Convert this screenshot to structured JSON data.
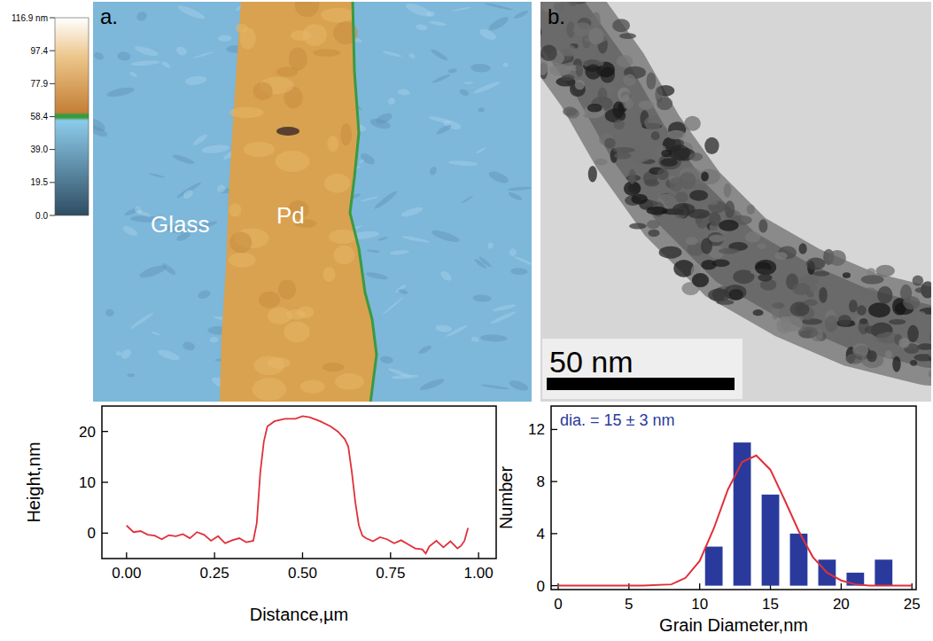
{
  "afm_image": {
    "letter": "a.",
    "labels": [
      "Glass",
      "Pd"
    ],
    "colorbar": {
      "range": [
        0,
        116.9
      ],
      "ticks": [
        {
          "value": 116.9,
          "label": "116.9 nm"
        },
        97.4,
        77.9,
        58.4,
        {
          "value": 39.0,
          "label": "39.0"
        },
        19.5,
        {
          "value": 0.0,
          "label": "0.0"
        }
      ]
    }
  },
  "tem_image": {
    "letter": "b.",
    "scale_bar": "50 nm"
  },
  "chart_data": [
    {
      "type": "line",
      "x_label": "Distance,µm",
      "y_label": "Height,nm",
      "color": "#e0303a",
      "x": [
        0,
        0.02,
        0.04,
        0.06,
        0.08,
        0.1,
        0.12,
        0.14,
        0.16,
        0.18,
        0.2,
        0.22,
        0.24,
        0.26,
        0.28,
        0.3,
        0.32,
        0.34,
        0.36,
        0.37,
        0.38,
        0.39,
        0.4,
        0.42,
        0.45,
        0.48,
        0.5,
        0.52,
        0.55,
        0.58,
        0.6,
        0.62,
        0.63,
        0.64,
        0.65,
        0.66,
        0.67,
        0.68,
        0.7,
        0.72,
        0.74,
        0.76,
        0.78,
        0.8,
        0.82,
        0.84,
        0.85,
        0.86,
        0.88,
        0.9,
        0.92,
        0.94,
        0.95,
        0.96,
        0.97
      ],
      "values": [
        1.5,
        0.2,
        0.4,
        -0.3,
        -0.5,
        -1.2,
        -0.4,
        -0.6,
        -0.2,
        -1.0,
        0.2,
        -0.3,
        -1.5,
        -0.6,
        -2.0,
        -1.4,
        -1.0,
        -1.8,
        -1.5,
        2,
        12,
        18,
        21,
        22,
        22.5,
        22.5,
        23,
        22.8,
        22,
        21,
        20,
        18.5,
        17,
        12,
        6,
        1.5,
        -0.5,
        -1.0,
        -1.6,
        -0.8,
        -1.2,
        -2.0,
        -1.4,
        -2.2,
        -3.0,
        -3.2,
        -4.0,
        -2.6,
        -1.5,
        -2.8,
        -1.6,
        -3.0,
        -2.5,
        -1.5,
        1.0
      ],
      "xlim": [
        -0.07,
        1.05
      ],
      "xticks": [
        {
          "value": 0,
          "label": "0.00"
        },
        {
          "value": 0.25,
          "label": "0.25"
        },
        {
          "value": 0.5,
          "label": "0.50"
        },
        {
          "value": 0.75,
          "label": "0.75"
        },
        {
          "value": 1,
          "label": "1.00"
        }
      ],
      "ylim": [
        -5,
        25
      ],
      "yticks": [
        0,
        10,
        20
      ]
    },
    {
      "type": "bar",
      "x_label": "Grain Diameter,nm",
      "y_label": "Number",
      "annotation": "dia. = 15 ± 3 nm",
      "xlim": [
        -0.5,
        25.3
      ],
      "xticks": [
        0,
        5,
        10,
        15,
        20,
        25
      ],
      "ylim": [
        -0.3,
        13.8
      ],
      "yticks": [
        0,
        4,
        8,
        12
      ],
      "series": [
        {
          "type": "bar",
          "color": "#2a3a9c",
          "x": [
            11,
            13,
            15,
            17,
            19,
            21,
            23
          ],
          "values": [
            3,
            11,
            7,
            4,
            2,
            1,
            2
          ]
        },
        {
          "type": "line",
          "color": "#e0303a",
          "x": [
            0,
            2,
            4,
            6,
            8,
            9,
            10,
            11,
            12,
            13,
            14,
            15,
            16,
            17,
            18,
            19,
            20,
            21,
            22,
            23,
            24,
            25
          ],
          "values": [
            0,
            0,
            0,
            0,
            0.1,
            0.6,
            1.9,
            4.4,
            7.4,
            9.5,
            10,
            8.9,
            6.6,
            4.2,
            2.2,
            1.0,
            0.4,
            0.1,
            0,
            0,
            0,
            0
          ]
        }
      ]
    }
  ]
}
